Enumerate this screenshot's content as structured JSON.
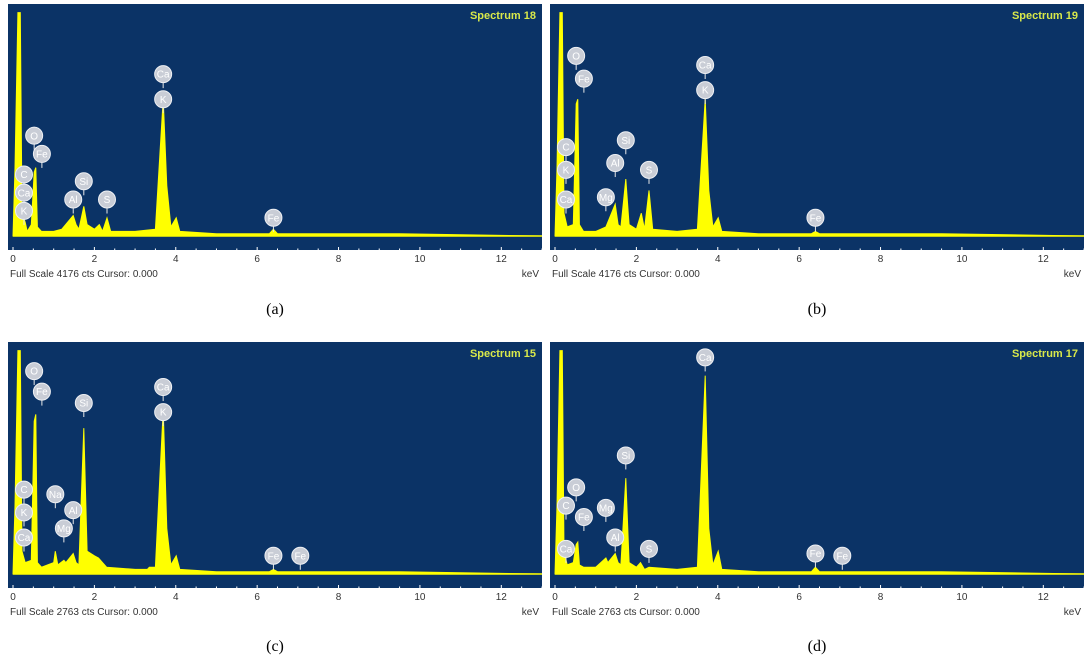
{
  "chart_data": [
    {
      "type": "area",
      "title": "Spectrum 18",
      "caption": "(a)",
      "footer": "Full Scale 4176 cts Cursor: 0.000",
      "xunit": "keV",
      "xlim": [
        0,
        13
      ],
      "xticks": [
        "0",
        "2",
        "4",
        "6",
        "8",
        "10",
        "12"
      ],
      "color": "#ffff00",
      "background": "#0b3366",
      "points": [
        [
          0,
          0
        ],
        [
          0.05,
          0.3
        ],
        [
          0.12,
          0.98
        ],
        [
          0.18,
          0.98
        ],
        [
          0.22,
          0.1
        ],
        [
          0.3,
          0.06
        ],
        [
          0.35,
          0.02
        ],
        [
          0.45,
          0.05
        ],
        [
          0.52,
          0.28
        ],
        [
          0.56,
          0.3
        ],
        [
          0.6,
          0.04
        ],
        [
          0.7,
          0.02
        ],
        [
          1.0,
          0.02
        ],
        [
          1.2,
          0.03
        ],
        [
          1.48,
          0.09
        ],
        [
          1.55,
          0.05
        ],
        [
          1.62,
          0.03
        ],
        [
          1.74,
          0.13
        ],
        [
          1.82,
          0.05
        ],
        [
          2.0,
          0.03
        ],
        [
          2.12,
          0.05
        ],
        [
          2.2,
          0.02
        ],
        [
          2.31,
          0.08
        ],
        [
          2.4,
          0.02
        ],
        [
          3.0,
          0.02
        ],
        [
          3.5,
          0.03
        ],
        [
          3.69,
          0.6
        ],
        [
          3.78,
          0.22
        ],
        [
          3.88,
          0.04
        ],
        [
          4.01,
          0.08
        ],
        [
          4.1,
          0.02
        ],
        [
          5.0,
          0.01
        ],
        [
          6.3,
          0.01
        ],
        [
          6.4,
          0.03
        ],
        [
          6.5,
          0.01
        ],
        [
          9.5,
          0.01
        ],
        [
          13,
          0
        ]
      ],
      "labels": [
        {
          "text": "Ca",
          "x": 3.69,
          "y": 0.71
        },
        {
          "text": "K",
          "x": 3.69,
          "y": 0.6
        },
        {
          "text": "O",
          "x": 0.52,
          "y": 0.44
        },
        {
          "text": "Fe",
          "x": 0.71,
          "y": 0.36
        },
        {
          "text": "C",
          "x": 0.27,
          "y": 0.27
        },
        {
          "text": "Ca",
          "x": 0.27,
          "y": 0.19
        },
        {
          "text": "K",
          "x": 0.27,
          "y": 0.11
        },
        {
          "text": "Si",
          "x": 1.74,
          "y": 0.24
        },
        {
          "text": "Al",
          "x": 1.48,
          "y": 0.16
        },
        {
          "text": "S",
          "x": 2.31,
          "y": 0.16
        },
        {
          "text": "Fe",
          "x": 6.4,
          "y": 0.08
        }
      ]
    },
    {
      "type": "area",
      "title": "Spectrum 19",
      "caption": "(b)",
      "footer": "Full Scale 4176 cts Cursor: 0.000",
      "xunit": "keV",
      "xlim": [
        0,
        13
      ],
      "xticks": [
        "0",
        "2",
        "4",
        "6",
        "8",
        "10",
        "12"
      ],
      "color": "#ffff00",
      "background": "#0b3366",
      "points": [
        [
          0,
          0
        ],
        [
          0.05,
          0.3
        ],
        [
          0.12,
          0.98
        ],
        [
          0.18,
          0.98
        ],
        [
          0.22,
          0.1
        ],
        [
          0.3,
          0.04
        ],
        [
          0.45,
          0.05
        ],
        [
          0.52,
          0.58
        ],
        [
          0.56,
          0.6
        ],
        [
          0.6,
          0.05
        ],
        [
          0.7,
          0.02
        ],
        [
          1.0,
          0.02
        ],
        [
          1.25,
          0.04
        ],
        [
          1.48,
          0.14
        ],
        [
          1.55,
          0.05
        ],
        [
          1.62,
          0.04
        ],
        [
          1.74,
          0.25
        ],
        [
          1.82,
          0.05
        ],
        [
          2.0,
          0.03
        ],
        [
          2.12,
          0.1
        ],
        [
          2.2,
          0.03
        ],
        [
          2.31,
          0.2
        ],
        [
          2.4,
          0.03
        ],
        [
          3.0,
          0.02
        ],
        [
          3.5,
          0.03
        ],
        [
          3.69,
          0.6
        ],
        [
          3.78,
          0.2
        ],
        [
          3.88,
          0.04
        ],
        [
          4.01,
          0.08
        ],
        [
          4.1,
          0.02
        ],
        [
          5.0,
          0.01
        ],
        [
          6.3,
          0.01
        ],
        [
          6.4,
          0.02
        ],
        [
          6.5,
          0.01
        ],
        [
          9.5,
          0.01
        ],
        [
          13,
          0
        ]
      ],
      "labels": [
        {
          "text": "Ca",
          "x": 3.69,
          "y": 0.75
        },
        {
          "text": "K",
          "x": 3.69,
          "y": 0.64
        },
        {
          "text": "O",
          "x": 0.52,
          "y": 0.79
        },
        {
          "text": "Fe",
          "x": 0.71,
          "y": 0.69
        },
        {
          "text": "Si",
          "x": 1.74,
          "y": 0.42
        },
        {
          "text": "Al",
          "x": 1.48,
          "y": 0.32
        },
        {
          "text": "S",
          "x": 2.31,
          "y": 0.29
        },
        {
          "text": "C",
          "x": 0.27,
          "y": 0.39
        },
        {
          "text": "K",
          "x": 0.27,
          "y": 0.29
        },
        {
          "text": "Ca",
          "x": 0.27,
          "y": 0.16
        },
        {
          "text": "Mg",
          "x": 1.25,
          "y": 0.17
        },
        {
          "text": "Fe",
          "x": 6.4,
          "y": 0.08
        }
      ]
    },
    {
      "type": "area",
      "title": "Spectrum 15",
      "caption": "(c)",
      "footer": "Full Scale 2763 cts Cursor: 0.000",
      "xunit": "keV",
      "xlim": [
        0,
        13
      ],
      "xticks": [
        "0",
        "2",
        "4",
        "6",
        "8",
        "10",
        "12"
      ],
      "color": "#ffff00",
      "background": "#0b3366",
      "points": [
        [
          0,
          0
        ],
        [
          0.05,
          0.3
        ],
        [
          0.12,
          0.98
        ],
        [
          0.18,
          0.98
        ],
        [
          0.22,
          0.1
        ],
        [
          0.3,
          0.05
        ],
        [
          0.45,
          0.06
        ],
        [
          0.52,
          0.67
        ],
        [
          0.56,
          0.7
        ],
        [
          0.6,
          0.05
        ],
        [
          0.7,
          0.03
        ],
        [
          1.0,
          0.05
        ],
        [
          1.04,
          0.1
        ],
        [
          1.1,
          0.04
        ],
        [
          1.25,
          0.06
        ],
        [
          1.3,
          0.05
        ],
        [
          1.48,
          0.09
        ],
        [
          1.55,
          0.05
        ],
        [
          1.62,
          0.04
        ],
        [
          1.74,
          0.64
        ],
        [
          1.82,
          0.1
        ],
        [
          2.0,
          0.08
        ],
        [
          2.1,
          0.07
        ],
        [
          2.3,
          0.03
        ],
        [
          3.0,
          0.02
        ],
        [
          3.3,
          0.02
        ],
        [
          3.35,
          0.03
        ],
        [
          3.5,
          0.03
        ],
        [
          3.69,
          0.72
        ],
        [
          3.78,
          0.2
        ],
        [
          3.88,
          0.04
        ],
        [
          4.01,
          0.08
        ],
        [
          4.1,
          0.02
        ],
        [
          5.0,
          0.01
        ],
        [
          6.3,
          0.01
        ],
        [
          6.4,
          0.02
        ],
        [
          6.5,
          0.01
        ],
        [
          9.5,
          0.01
        ],
        [
          13,
          0
        ]
      ],
      "labels": [
        {
          "text": "Ca",
          "x": 3.69,
          "y": 0.82
        },
        {
          "text": "K",
          "x": 3.69,
          "y": 0.71
        },
        {
          "text": "O",
          "x": 0.52,
          "y": 0.89
        },
        {
          "text": "Fe",
          "x": 0.71,
          "y": 0.8
        },
        {
          "text": "Si",
          "x": 1.74,
          "y": 0.75
        },
        {
          "text": "C",
          "x": 0.27,
          "y": 0.37
        },
        {
          "text": "K",
          "x": 0.27,
          "y": 0.27
        },
        {
          "text": "Ca",
          "x": 0.27,
          "y": 0.16
        },
        {
          "text": "Na",
          "x": 1.04,
          "y": 0.35
        },
        {
          "text": "Al",
          "x": 1.48,
          "y": 0.28
        },
        {
          "text": "Mg",
          "x": 1.25,
          "y": 0.2
        },
        {
          "text": "Fe",
          "x": 6.4,
          "y": 0.08
        },
        {
          "text": "Fe",
          "x": 7.06,
          "y": 0.08
        }
      ]
    },
    {
      "type": "area",
      "title": "Spectrum 17",
      "caption": "(d)",
      "footer": "Full Scale 2763 cts Cursor: 0.000",
      "xunit": "keV",
      "xlim": [
        0,
        13
      ],
      "xticks": [
        "0",
        "2",
        "4",
        "6",
        "8",
        "10",
        "12"
      ],
      "color": "#ffff00",
      "background": "#0b3366",
      "points": [
        [
          0,
          0
        ],
        [
          0.05,
          0.3
        ],
        [
          0.12,
          0.98
        ],
        [
          0.18,
          0.98
        ],
        [
          0.22,
          0.1
        ],
        [
          0.3,
          0.04
        ],
        [
          0.45,
          0.05
        ],
        [
          0.52,
          0.13
        ],
        [
          0.56,
          0.14
        ],
        [
          0.6,
          0.04
        ],
        [
          0.7,
          0.03
        ],
        [
          1.0,
          0.03
        ],
        [
          1.25,
          0.07
        ],
        [
          1.3,
          0.05
        ],
        [
          1.48,
          0.09
        ],
        [
          1.55,
          0.05
        ],
        [
          1.62,
          0.04
        ],
        [
          1.74,
          0.42
        ],
        [
          1.82,
          0.05
        ],
        [
          2.0,
          0.03
        ],
        [
          2.1,
          0.05
        ],
        [
          2.2,
          0.02
        ],
        [
          2.31,
          0.03
        ],
        [
          3.0,
          0.02
        ],
        [
          3.5,
          0.03
        ],
        [
          3.69,
          0.87
        ],
        [
          3.78,
          0.2
        ],
        [
          3.88,
          0.04
        ],
        [
          4.01,
          0.1
        ],
        [
          4.1,
          0.02
        ],
        [
          5.0,
          0.01
        ],
        [
          6.3,
          0.01
        ],
        [
          6.4,
          0.03
        ],
        [
          6.5,
          0.01
        ],
        [
          9.5,
          0.01
        ],
        [
          13,
          0
        ]
      ],
      "labels": [
        {
          "text": "Ca",
          "x": 3.69,
          "y": 0.95
        },
        {
          "text": "Si",
          "x": 1.74,
          "y": 0.52
        },
        {
          "text": "O",
          "x": 0.52,
          "y": 0.38
        },
        {
          "text": "C",
          "x": 0.27,
          "y": 0.3
        },
        {
          "text": "Fe",
          "x": 0.71,
          "y": 0.25
        },
        {
          "text": "Mg",
          "x": 1.25,
          "y": 0.29
        },
        {
          "text": "Al",
          "x": 1.48,
          "y": 0.16
        },
        {
          "text": "Ca",
          "x": 0.27,
          "y": 0.11
        },
        {
          "text": "S",
          "x": 2.31,
          "y": 0.11
        },
        {
          "text": "Fe",
          "x": 6.4,
          "y": 0.09
        },
        {
          "text": "Fe",
          "x": 7.06,
          "y": 0.08
        }
      ]
    }
  ]
}
